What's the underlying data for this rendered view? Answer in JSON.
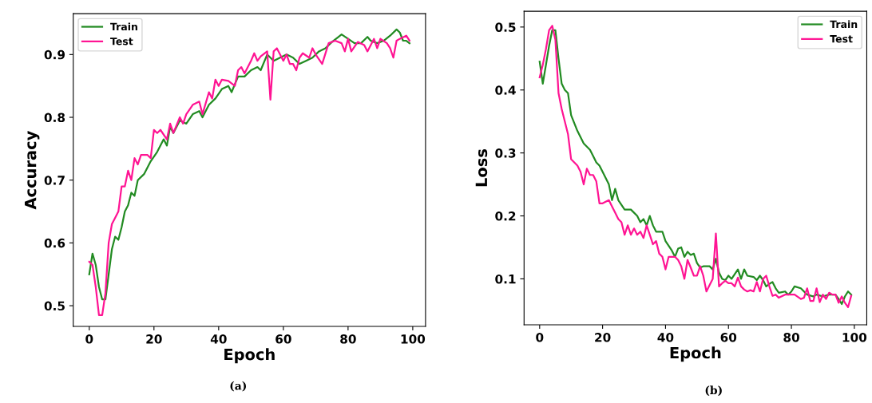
{
  "chart_data": [
    {
      "type": "line",
      "xlabel": "Epoch",
      "ylabel": "Accuracy",
      "annotations": [
        "(a)"
      ],
      "xlim": [
        -4.95,
        103.95
      ],
      "xticks": [
        0,
        20,
        40,
        60,
        80,
        100
      ],
      "ylim": [
        0.467,
        0.965
      ],
      "yticks": [
        0.5,
        0.6,
        0.7,
        0.8,
        0.9
      ],
      "legend": "top left",
      "grid": false,
      "series": [
        {
          "name": "Train",
          "color": "#228b22",
          "x": [
            0,
            1,
            2,
            3,
            4,
            5,
            6,
            7,
            8,
            9,
            10,
            11,
            12,
            13,
            14,
            15,
            17,
            19,
            21,
            23,
            24,
            25,
            26,
            28,
            30,
            32,
            34,
            35,
            37,
            39,
            41,
            43,
            44,
            46,
            48,
            50,
            52,
            53,
            55,
            57,
            59,
            61,
            63,
            65,
            67,
            69,
            71,
            73,
            75,
            77,
            78,
            80,
            82,
            84,
            86,
            87,
            89,
            91,
            93,
            95,
            96,
            97,
            98,
            99
          ],
          "values": [
            0.55,
            0.583,
            0.565,
            0.53,
            0.51,
            0.51,
            0.55,
            0.59,
            0.61,
            0.605,
            0.625,
            0.65,
            0.66,
            0.68,
            0.675,
            0.7,
            0.71,
            0.73,
            0.745,
            0.765,
            0.755,
            0.785,
            0.775,
            0.795,
            0.79,
            0.805,
            0.81,
            0.8,
            0.82,
            0.83,
            0.845,
            0.85,
            0.84,
            0.865,
            0.865,
            0.875,
            0.88,
            0.875,
            0.9,
            0.89,
            0.895,
            0.9,
            0.895,
            0.885,
            0.89,
            0.895,
            0.905,
            0.91,
            0.92,
            0.928,
            0.932,
            0.925,
            0.918,
            0.918,
            0.928,
            0.922,
            0.918,
            0.922,
            0.93,
            0.94,
            0.935,
            0.922,
            0.922,
            0.918
          ]
        },
        {
          "name": "Test",
          "color": "#ff1493",
          "x": [
            0,
            1,
            2,
            3,
            4,
            5,
            6,
            7,
            8,
            9,
            10,
            11,
            12,
            13,
            14,
            15,
            16,
            18,
            19,
            20,
            21,
            22,
            24,
            25,
            26,
            28,
            29,
            30,
            32,
            34,
            35,
            37,
            38,
            39,
            40,
            41,
            43,
            45,
            46,
            47,
            48,
            50,
            51,
            52,
            53,
            55,
            56,
            57,
            58,
            60,
            61,
            62,
            63,
            64,
            65,
            66,
            68,
            69,
            70,
            72,
            74,
            76,
            78,
            79,
            80,
            81,
            83,
            85,
            86,
            88,
            89,
            90,
            92,
            93,
            94,
            95,
            96,
            98,
            99
          ],
          "values": [
            0.57,
            0.565,
            0.53,
            0.485,
            0.485,
            0.52,
            0.6,
            0.63,
            0.64,
            0.65,
            0.69,
            0.69,
            0.715,
            0.7,
            0.735,
            0.725,
            0.74,
            0.74,
            0.735,
            0.78,
            0.775,
            0.78,
            0.765,
            0.79,
            0.775,
            0.8,
            0.79,
            0.805,
            0.82,
            0.825,
            0.805,
            0.84,
            0.83,
            0.86,
            0.85,
            0.86,
            0.858,
            0.85,
            0.875,
            0.88,
            0.87,
            0.89,
            0.902,
            0.89,
            0.897,
            0.905,
            0.828,
            0.905,
            0.91,
            0.89,
            0.9,
            0.885,
            0.885,
            0.875,
            0.895,
            0.902,
            0.895,
            0.91,
            0.9,
            0.885,
            0.918,
            0.922,
            0.918,
            0.905,
            0.925,
            0.905,
            0.92,
            0.915,
            0.905,
            0.925,
            0.91,
            0.925,
            0.918,
            0.91,
            0.895,
            0.922,
            0.925,
            0.93,
            0.922
          ]
        }
      ]
    },
    {
      "type": "line",
      "xlabel": "Epoch",
      "ylabel": "Loss",
      "annotations": [
        "(b)"
      ],
      "xlim": [
        -4.95,
        103.95
      ],
      "xticks": [
        0,
        20,
        40,
        60,
        80,
        100
      ],
      "ylim": [
        0.027,
        0.525
      ],
      "yticks": [
        0.1,
        0.2,
        0.3,
        0.4,
        0.5
      ],
      "legend": "top right",
      "grid": false,
      "series": [
        {
          "name": "Train",
          "color": "#228b22",
          "x": [
            0,
            1,
            2,
            3,
            4,
            5,
            6,
            7,
            8,
            9,
            10,
            12,
            14,
            16,
            17,
            18,
            19,
            20,
            22,
            23,
            24,
            25,
            27,
            29,
            31,
            32,
            33,
            34,
            35,
            36,
            37,
            39,
            40,
            42,
            43,
            44,
            45,
            46,
            47,
            48,
            49,
            50,
            51,
            52,
            54,
            55,
            56,
            57,
            58,
            59,
            60,
            61,
            63,
            64,
            65,
            66,
            68,
            69,
            70,
            71,
            72,
            73,
            74,
            75,
            76,
            78,
            79,
            80,
            81,
            83,
            85,
            87,
            88,
            90,
            92,
            94,
            95,
            96,
            97,
            98,
            99
          ],
          "values": [
            0.445,
            0.41,
            0.44,
            0.47,
            0.495,
            0.495,
            0.45,
            0.41,
            0.4,
            0.395,
            0.36,
            0.335,
            0.315,
            0.305,
            0.295,
            0.285,
            0.28,
            0.27,
            0.25,
            0.225,
            0.243,
            0.225,
            0.21,
            0.21,
            0.2,
            0.19,
            0.195,
            0.185,
            0.2,
            0.185,
            0.175,
            0.175,
            0.16,
            0.145,
            0.135,
            0.148,
            0.15,
            0.135,
            0.143,
            0.138,
            0.14,
            0.125,
            0.118,
            0.12,
            0.12,
            0.115,
            0.132,
            0.11,
            0.1,
            0.098,
            0.105,
            0.1,
            0.115,
            0.1,
            0.115,
            0.105,
            0.103,
            0.098,
            0.105,
            0.098,
            0.088,
            0.092,
            0.095,
            0.085,
            0.078,
            0.08,
            0.075,
            0.08,
            0.088,
            0.085,
            0.075,
            0.072,
            0.075,
            0.072,
            0.075,
            0.075,
            0.068,
            0.06,
            0.072,
            0.08,
            0.075
          ]
        },
        {
          "name": "Test",
          "color": "#ff1493",
          "x": [
            0,
            1,
            2,
            3,
            4,
            5,
            6,
            7,
            8,
            9,
            10,
            11,
            12,
            13,
            14,
            15,
            16,
            17,
            18,
            19,
            20,
            22,
            23,
            24,
            25,
            26,
            27,
            28,
            29,
            30,
            31,
            32,
            33,
            34,
            35,
            36,
            37,
            38,
            39,
            40,
            41,
            43,
            44,
            45,
            46,
            47,
            48,
            49,
            50,
            51,
            52,
            53,
            54,
            55,
            56,
            57,
            58,
            59,
            60,
            61,
            62,
            63,
            64,
            65,
            66,
            67,
            68,
            69,
            70,
            71,
            72,
            73,
            74,
            75,
            76,
            78,
            80,
            81,
            83,
            84,
            85,
            86,
            87,
            88,
            89,
            90,
            91,
            92,
            93,
            94,
            95,
            96,
            97,
            98,
            99
          ],
          "values": [
            0.42,
            0.44,
            0.465,
            0.495,
            0.502,
            0.48,
            0.395,
            0.37,
            0.35,
            0.33,
            0.29,
            0.285,
            0.28,
            0.27,
            0.25,
            0.275,
            0.265,
            0.265,
            0.255,
            0.22,
            0.22,
            0.225,
            0.215,
            0.205,
            0.195,
            0.19,
            0.17,
            0.185,
            0.17,
            0.18,
            0.17,
            0.175,
            0.165,
            0.185,
            0.17,
            0.155,
            0.16,
            0.14,
            0.135,
            0.115,
            0.135,
            0.135,
            0.13,
            0.12,
            0.1,
            0.13,
            0.118,
            0.105,
            0.105,
            0.12,
            0.105,
            0.08,
            0.09,
            0.1,
            0.172,
            0.088,
            0.093,
            0.097,
            0.093,
            0.093,
            0.088,
            0.102,
            0.088,
            0.083,
            0.08,
            0.082,
            0.08,
            0.095,
            0.08,
            0.1,
            0.105,
            0.088,
            0.073,
            0.075,
            0.07,
            0.075,
            0.075,
            0.075,
            0.068,
            0.07,
            0.085,
            0.065,
            0.065,
            0.085,
            0.063,
            0.075,
            0.068,
            0.078,
            0.075,
            0.075,
            0.062,
            0.072,
            0.062,
            0.055,
            0.073
          ]
        }
      ]
    }
  ]
}
